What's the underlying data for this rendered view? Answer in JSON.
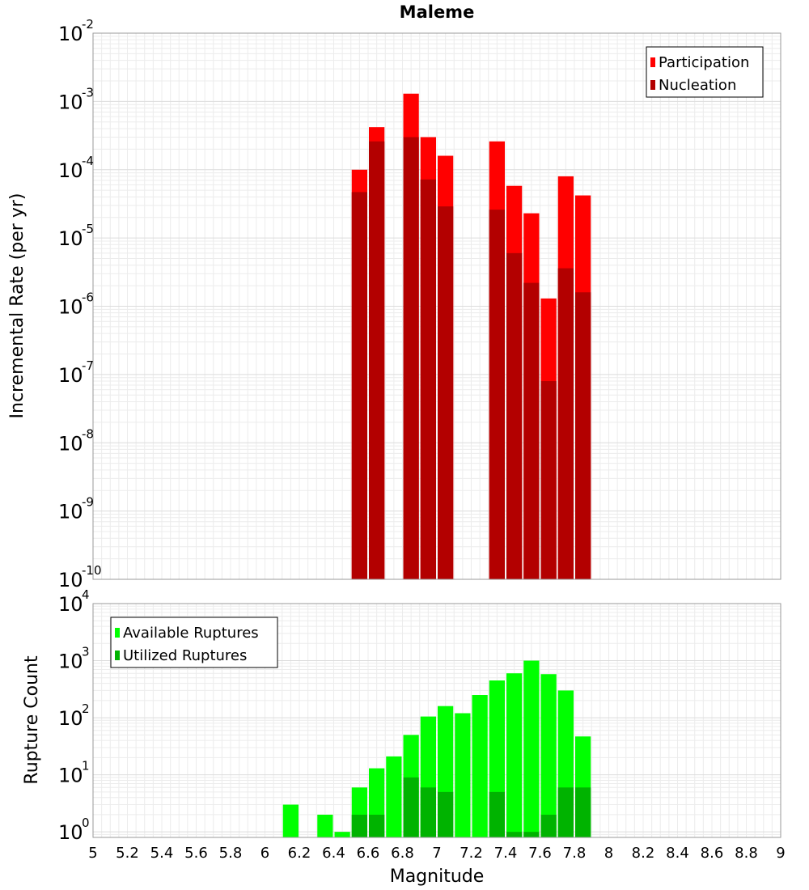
{
  "chart_data": [
    {
      "type": "bar",
      "title": "Maleme",
      "ylabel": "Incremental Rate (per yr)",
      "y_scale": "log",
      "ylim": [
        1e-10,
        0.01
      ],
      "xlim": [
        5,
        9
      ],
      "grid": true,
      "legend_position": "top-right",
      "x": [
        6.55,
        6.65,
        6.85,
        6.95,
        7.05,
        7.35,
        7.45,
        7.55,
        7.65,
        7.75,
        7.85
      ],
      "series": [
        {
          "name": "Participation",
          "color": "#ff0000",
          "values": [
            0.0001,
            0.00042,
            0.0013,
            0.0003,
            0.00016,
            0.00026,
            5.8e-05,
            2.3e-05,
            1.3e-06,
            8e-05,
            4.2e-05
          ]
        },
        {
          "name": "Nucleation",
          "color": "#b30000",
          "values": [
            4.7e-05,
            0.00026,
            0.0003,
            7.2e-05,
            2.9e-05,
            2.6e-05,
            6e-06,
            2.2e-06,
            8e-08,
            3.6e-06,
            1.6e-06
          ]
        }
      ]
    },
    {
      "type": "bar",
      "xlabel": "Magnitude",
      "ylabel": "Rupture Count",
      "y_scale": "log",
      "ylim": [
        0.8,
        10000
      ],
      "xlim": [
        5,
        9
      ],
      "grid": true,
      "legend_position": "top-left",
      "x_ticks": [
        "5",
        "5.2",
        "5.4",
        "5.6",
        "5.8",
        "6",
        "6.2",
        "6.4",
        "6.6",
        "6.8",
        "7",
        "7.2",
        "7.4",
        "7.6",
        "7.8",
        "8",
        "8.2",
        "8.4",
        "8.6",
        "8.8",
        "9"
      ],
      "x": [
        6.15,
        6.35,
        6.45,
        6.55,
        6.65,
        6.75,
        6.85,
        6.95,
        7.05,
        7.15,
        7.25,
        7.35,
        7.45,
        7.55,
        7.65,
        7.75,
        7.85
      ],
      "series": [
        {
          "name": "Available Ruptures",
          "color": "#00ff00",
          "values": [
            3,
            2,
            1,
            6,
            13,
            21,
            50,
            105,
            160,
            120,
            250,
            450,
            600,
            1000,
            580,
            300,
            47
          ]
        },
        {
          "name": "Utilized Ruptures",
          "color": "#00b300",
          "values": [
            null,
            null,
            null,
            2,
            2,
            null,
            9,
            6,
            5,
            null,
            null,
            5,
            1,
            1,
            2,
            6,
            6
          ]
        }
      ]
    }
  ]
}
